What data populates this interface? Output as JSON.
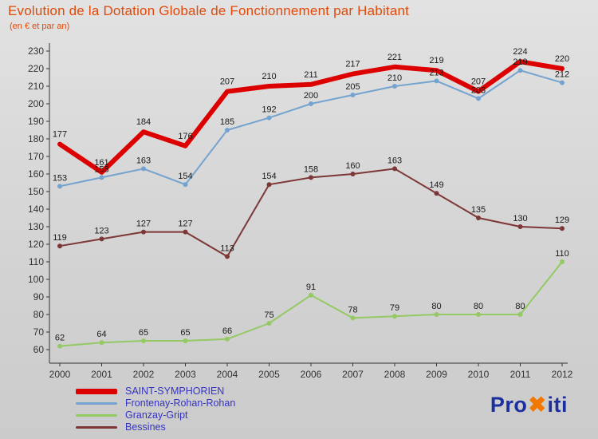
{
  "title": "Evolution de la Dotation Globale de Fonctionnement par Habitant",
  "subtitle": "(en € et par an)",
  "logo": {
    "pro": "Pro",
    "x": "✖",
    "iti": "iti"
  },
  "chart_data": {
    "type": "line",
    "x": [
      2000,
      2001,
      2002,
      2003,
      2004,
      2005,
      2006,
      2007,
      2008,
      2009,
      2010,
      2011,
      2012
    ],
    "series": [
      {
        "name": "SAINT-SYMPHORIEN",
        "color": "#dd0000",
        "line_width": 6,
        "values": [
          177,
          161,
          184,
          176,
          207,
          210,
          211,
          217,
          221,
          219,
          207,
          224,
          220
        ]
      },
      {
        "name": "Frontenay-Rohan-Rohan",
        "color": "#74a3cf",
        "line_width": 2,
        "values": [
          153,
          158,
          163,
          154,
          185,
          192,
          200,
          205,
          210,
          213,
          203,
          219,
          212
        ]
      },
      {
        "name": "Granzay-Gript",
        "color": "#94c964",
        "line_width": 2,
        "values": [
          62,
          64,
          65,
          65,
          66,
          75,
          91,
          78,
          79,
          80,
          80,
          80,
          110
        ]
      },
      {
        "name": "Bessines",
        "color": "#7d3737",
        "line_width": 2,
        "values": [
          119,
          123,
          127,
          127,
          113,
          154,
          158,
          160,
          163,
          149,
          135,
          130,
          129
        ]
      }
    ],
    "ylim": [
      60,
      230
    ],
    "ytick_step": 10,
    "grid": false,
    "legend_position": "bottom-left",
    "label_color": "#1a1a1a",
    "axis_color": "#333333",
    "tick_label_color": "#333333"
  }
}
